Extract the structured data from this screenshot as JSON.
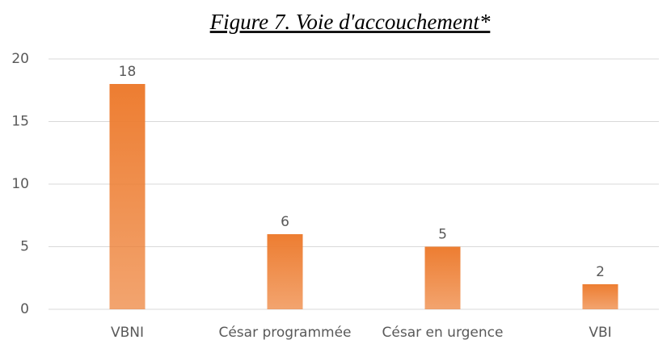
{
  "chart_data": {
    "type": "bar",
    "title": "Figure 7. Voie d'accouchement*",
    "categories": [
      "VBNI",
      "César programmée",
      "César en urgence",
      "VBI"
    ],
    "values": [
      18,
      6,
      5,
      2
    ],
    "color": "#ed7d31",
    "ylim": [
      0,
      20
    ],
    "yticks": [
      0,
      5,
      10,
      15,
      20
    ],
    "grid": true
  }
}
